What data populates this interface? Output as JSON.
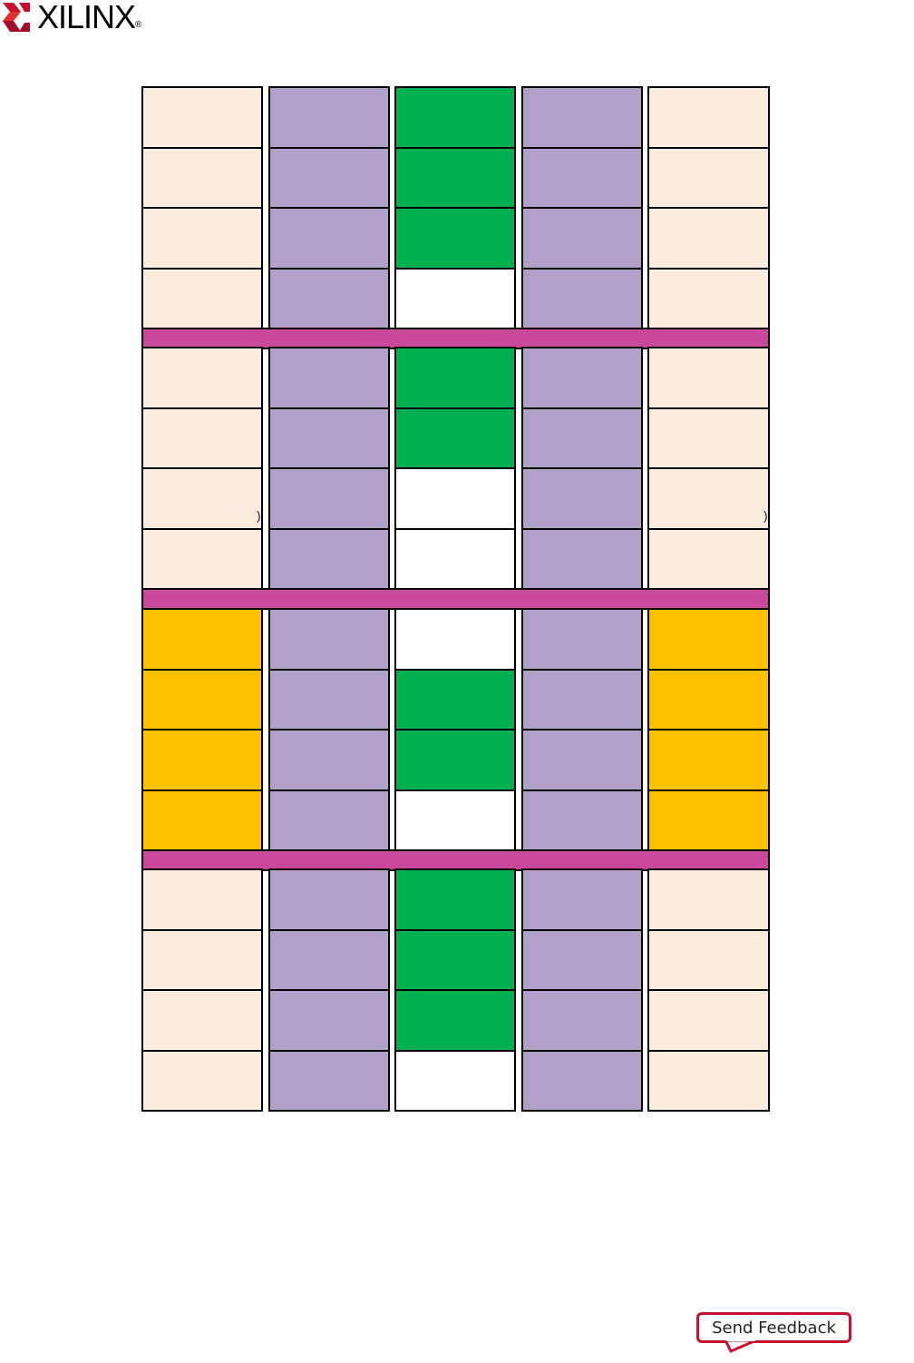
{
  "header": {
    "logo_text": "XILINX",
    "logo_reg": "®",
    "brand_color": "#c8102e"
  },
  "diagram": {
    "colors": {
      "peach": "#fbecdd",
      "purple": "#b1a1c9",
      "green": "#00b050",
      "white": "#ffffff",
      "yellow": "#ffc000",
      "pink": "#c9489b"
    },
    "groups": [
      {
        "outer": "peach",
        "center": [
          "green",
          "green",
          "green",
          "white"
        ]
      },
      {
        "outer": "peach",
        "center": [
          "green",
          "green",
          "white",
          "white"
        ]
      },
      {
        "outer": "yellow",
        "center": [
          "white",
          "green",
          "green",
          "white"
        ]
      },
      {
        "outer": "peach",
        "center": [
          "green",
          "green",
          "green",
          "white"
        ]
      }
    ],
    "inner": "purple",
    "separator": "pink",
    "paren_mark": ")"
  },
  "footer": {
    "feedback_label": "Send Feedback"
  }
}
